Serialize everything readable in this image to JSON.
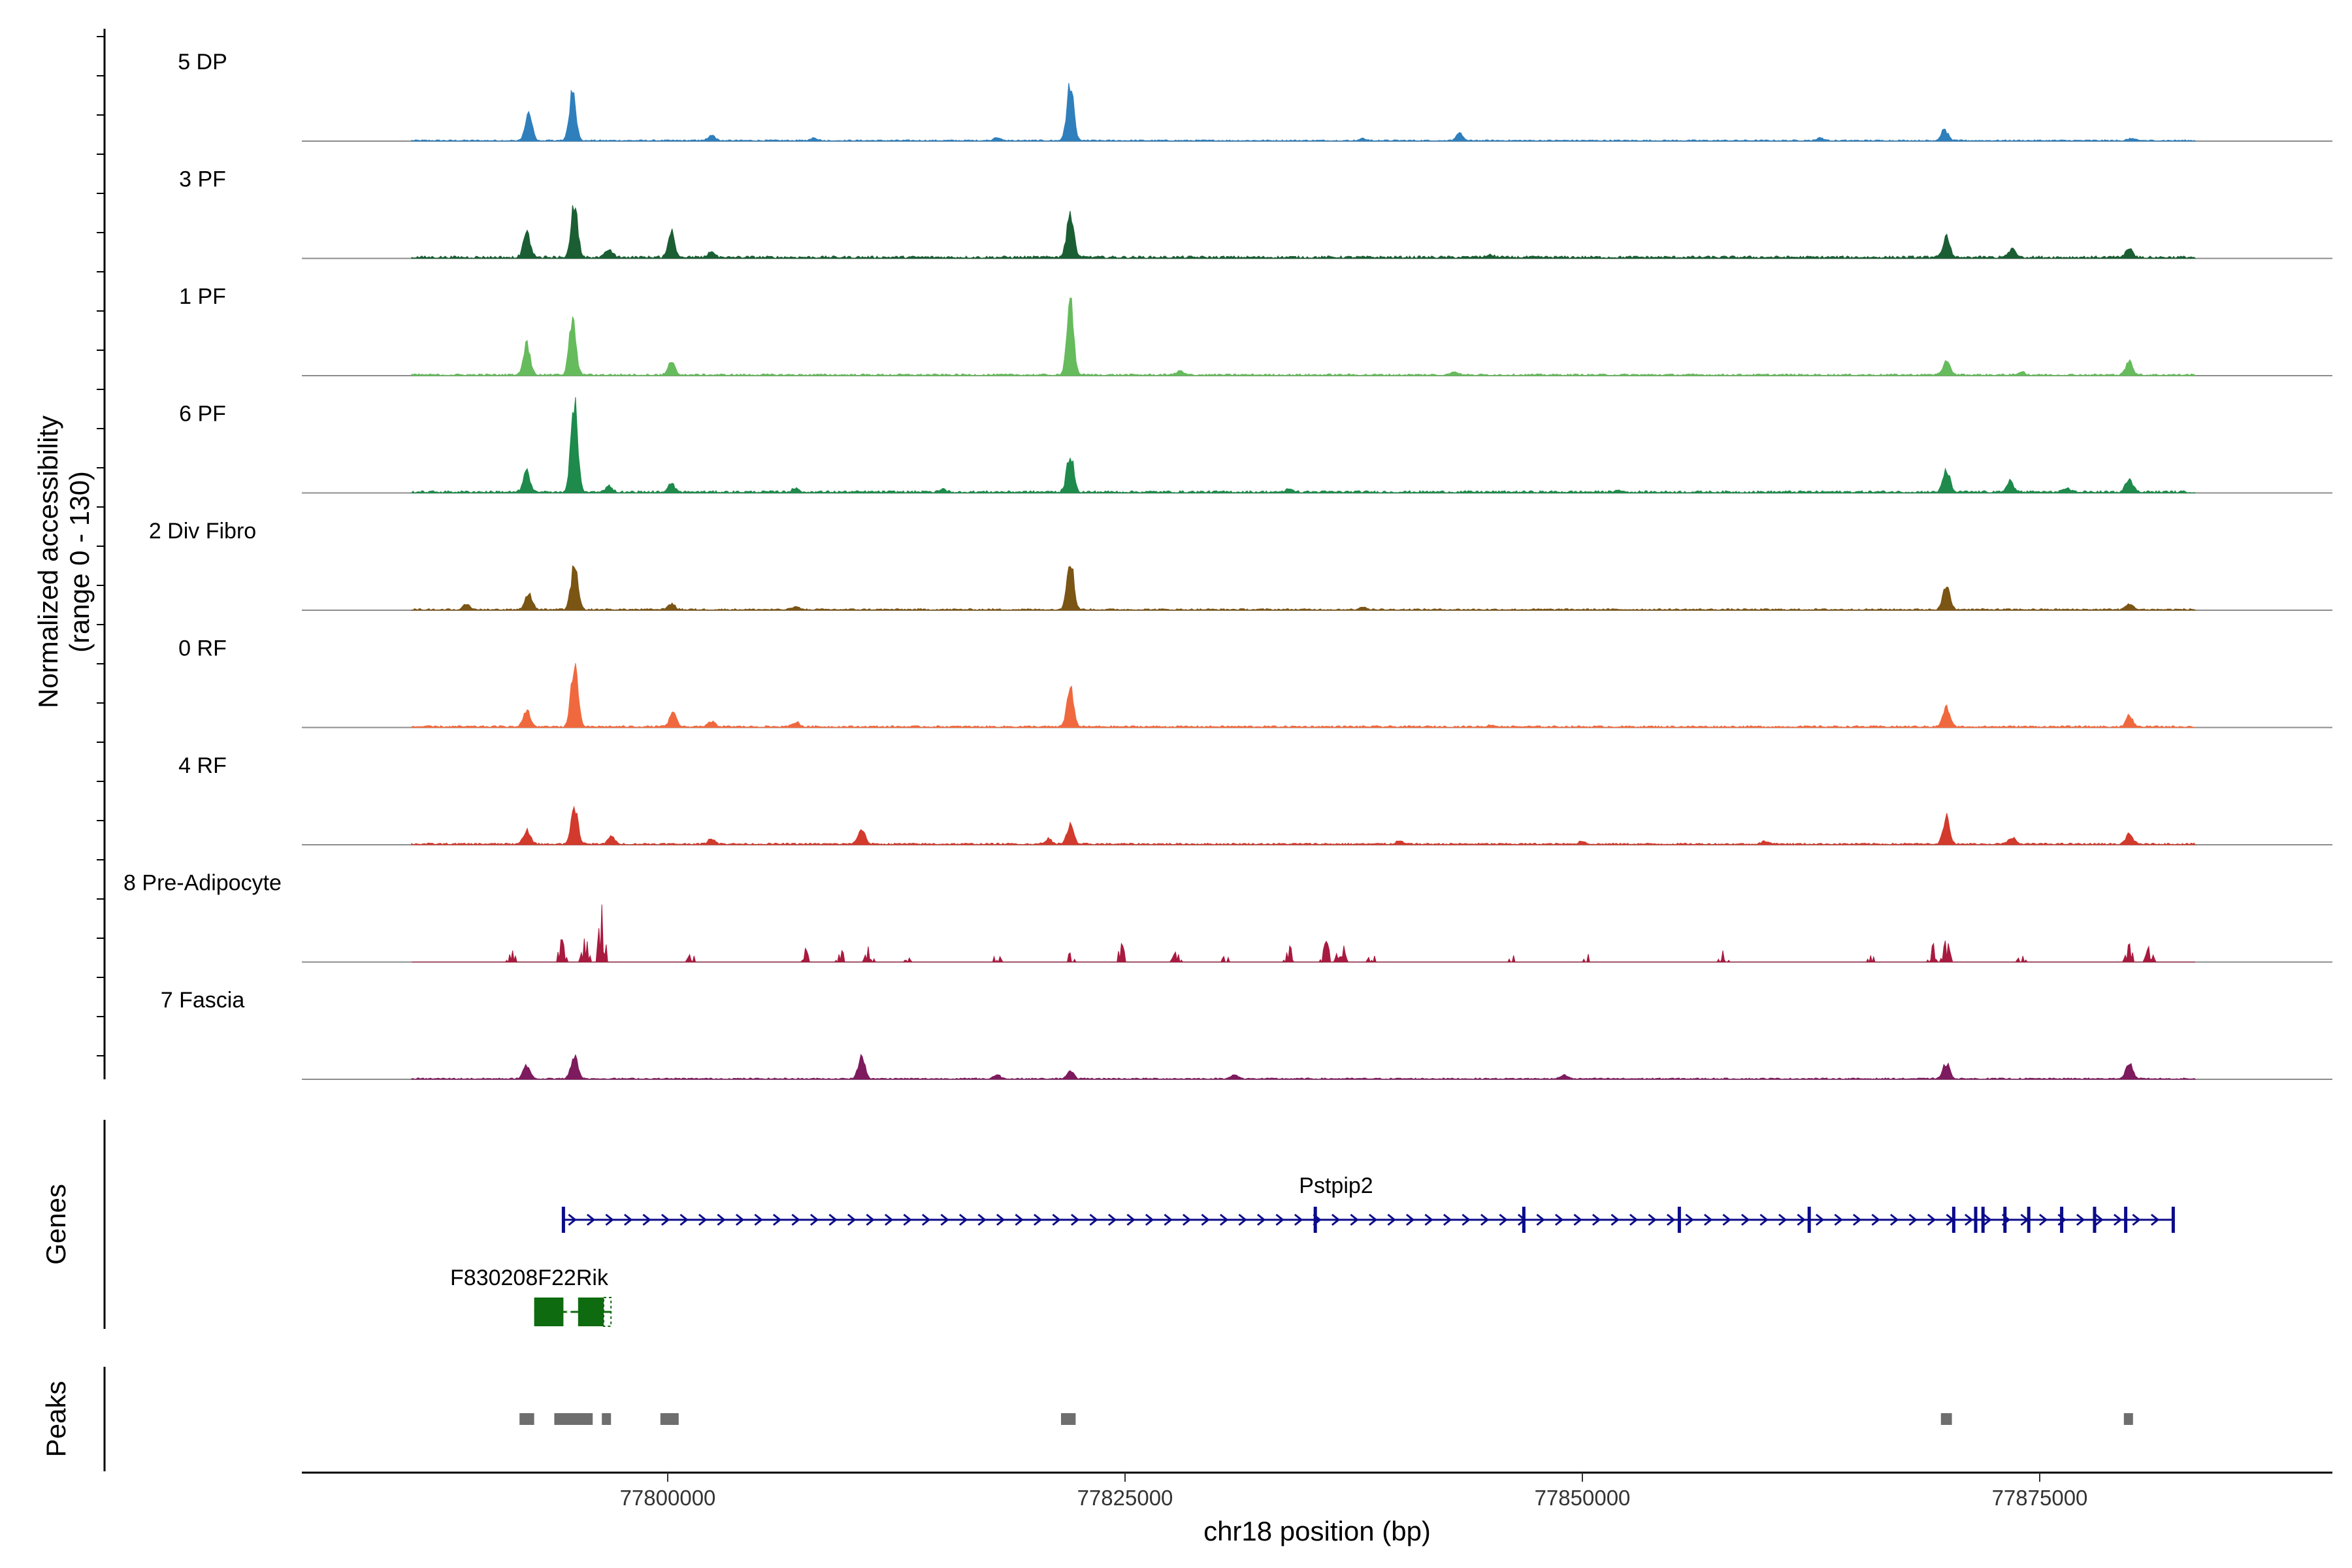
{
  "chart_data": {
    "type": "area",
    "title": "",
    "xlabel": "chr18 position (bp)",
    "ylabel": [
      "Normalized accessibility",
      "(range 0 - 130)"
    ],
    "ylim": [
      0,
      130
    ],
    "xlim": [
      77780000,
      77891000
    ],
    "x_ticks": [
      77800000,
      77825000,
      77850000,
      77875000
    ],
    "x_tick_labels": [
      "77800000",
      "77825000",
      "77850000",
      "77875000"
    ],
    "series": [
      {
        "name": "5 DP",
        "color": "#2f7fbc",
        "noise": 1.2,
        "peaks": [
          [
            77792400,
            27
          ],
          [
            77794800,
            48
          ],
          [
            77802400,
            6
          ],
          [
            77808000,
            3
          ],
          [
            77818000,
            3
          ],
          [
            77822000,
            56
          ],
          [
            77838000,
            2
          ],
          [
            77843300,
            7
          ],
          [
            77863000,
            3
          ],
          [
            77869800,
            11
          ],
          [
            77880000,
            2
          ]
        ]
      },
      {
        "name": "3 PF",
        "color": "#1b5e34",
        "noise": 2.2,
        "peaks": [
          [
            77792300,
            25
          ],
          [
            77794900,
            53
          ],
          [
            77796800,
            8
          ],
          [
            77800200,
            26
          ],
          [
            77802400,
            5
          ],
          [
            77822000,
            48
          ],
          [
            77845000,
            2
          ],
          [
            77869900,
            21
          ],
          [
            77873500,
            9
          ],
          [
            77879900,
            9
          ]
        ]
      },
      {
        "name": "1 PF",
        "color": "#66bb5c",
        "noise": 1.6,
        "peaks": [
          [
            77792300,
            32
          ],
          [
            77794800,
            55
          ],
          [
            77800200,
            13
          ],
          [
            77822000,
            74
          ],
          [
            77828000,
            4
          ],
          [
            77843000,
            4
          ],
          [
            77869900,
            14
          ],
          [
            77874000,
            3
          ],
          [
            77879900,
            14
          ]
        ]
      },
      {
        "name": "6 PF",
        "color": "#1e8a4b",
        "noise": 2.0,
        "peaks": [
          [
            77792300,
            21
          ],
          [
            77794900,
            90
          ],
          [
            77796800,
            6
          ],
          [
            77800200,
            9
          ],
          [
            77807000,
            4
          ],
          [
            77815000,
            3
          ],
          [
            77822000,
            39
          ],
          [
            77834000,
            3
          ],
          [
            77852000,
            2
          ],
          [
            77869900,
            22
          ],
          [
            77873400,
            11
          ],
          [
            77876500,
            4
          ],
          [
            77879900,
            15
          ]
        ]
      },
      {
        "name": "2 Div Fibro",
        "color": "#7b5514",
        "noise": 1.4,
        "peaks": [
          [
            77789000,
            5
          ],
          [
            77792400,
            17
          ],
          [
            77794900,
            45
          ],
          [
            77800200,
            6
          ],
          [
            77807000,
            3
          ],
          [
            77822000,
            53
          ],
          [
            77838000,
            3
          ],
          [
            77869900,
            24
          ],
          [
            77879900,
            6
          ]
        ]
      },
      {
        "name": "0 RF",
        "color": "#f0693e",
        "noise": 1.6,
        "peaks": [
          [
            77792300,
            17
          ],
          [
            77794900,
            65
          ],
          [
            77800300,
            15
          ],
          [
            77802400,
            5
          ],
          [
            77807000,
            5
          ],
          [
            77822000,
            39
          ],
          [
            77845000,
            2
          ],
          [
            77869900,
            20
          ],
          [
            77879900,
            11
          ]
        ]
      },
      {
        "name": "4 RF",
        "color": "#d23a2d",
        "noise": 1.5,
        "peaks": [
          [
            77792300,
            14
          ],
          [
            77794900,
            37
          ],
          [
            77796900,
            8
          ],
          [
            77802400,
            6
          ],
          [
            77810600,
            16
          ],
          [
            77820800,
            5
          ],
          [
            77822000,
            19
          ],
          [
            77840000,
            3
          ],
          [
            77850000,
            3
          ],
          [
            77860000,
            3
          ],
          [
            77869900,
            27
          ],
          [
            77873500,
            7
          ],
          [
            77879900,
            10
          ]
        ]
      },
      {
        "name": "8 Pre-Adipocyte",
        "color": "#a81a3f",
        "noise": 0.3,
        "sparse": true,
        "peaks": [
          [
            77791500,
            10
          ],
          [
            77794200,
            20
          ],
          [
            77795500,
            22
          ],
          [
            77796400,
            50
          ],
          [
            77801300,
            8
          ],
          [
            77807500,
            12
          ],
          [
            77809500,
            10
          ],
          [
            77811000,
            14
          ],
          [
            77813000,
            8
          ],
          [
            77818000,
            8
          ],
          [
            77822000,
            8
          ],
          [
            77824800,
            16
          ],
          [
            77827800,
            9
          ],
          [
            77830500,
            6
          ],
          [
            77834000,
            14
          ],
          [
            77836000,
            18
          ],
          [
            77836800,
            24
          ],
          [
            77838500,
            8
          ],
          [
            77846200,
            6
          ],
          [
            77850300,
            7
          ],
          [
            77857700,
            10
          ],
          [
            77865800,
            6
          ],
          [
            77869200,
            16
          ],
          [
            77869900,
            20
          ],
          [
            77874000,
            6
          ],
          [
            77879900,
            16
          ],
          [
            77881000,
            14
          ]
        ]
      },
      {
        "name": "7 Fascia",
        "color": "#7e1a5e",
        "noise": 1.2,
        "peaks": [
          [
            77792300,
            14
          ],
          [
            77794900,
            24
          ],
          [
            77810600,
            22
          ],
          [
            77818000,
            4
          ],
          [
            77822000,
            8
          ],
          [
            77831000,
            4
          ],
          [
            77849000,
            4
          ],
          [
            77869900,
            16
          ],
          [
            77879900,
            16
          ]
        ]
      }
    ],
    "genes": [
      {
        "name": "Pstpip2",
        "start": 77794300,
        "end": 77882300,
        "strand": "+",
        "color": "#0b0b8a",
        "exons": [
          77794300,
          77835400,
          77846800,
          77855300,
          77862400,
          77870300,
          77871500,
          77871900,
          77873100,
          77874400,
          77876200,
          77878000,
          77879700,
          77882300
        ]
      },
      {
        "name": "F830208F22Rik",
        "start": 77792700,
        "end": 77796900,
        "strand": "-",
        "color": "#0f6b0f",
        "blocks": [
          [
            77792700,
            77794300
          ],
          [
            77795100,
            77796500
          ]
        ],
        "thin": [
          77796500,
          77796900
        ]
      }
    ],
    "peaks": [
      [
        77791900,
        77792700
      ],
      [
        77793800,
        77795900
      ],
      [
        77796400,
        77796900
      ],
      [
        77799600,
        77800600
      ],
      [
        77821500,
        77822300
      ],
      [
        77869600,
        77870200
      ],
      [
        77879600,
        77880100
      ]
    ],
    "track_labels": [
      "Genes",
      "Peaks"
    ]
  }
}
